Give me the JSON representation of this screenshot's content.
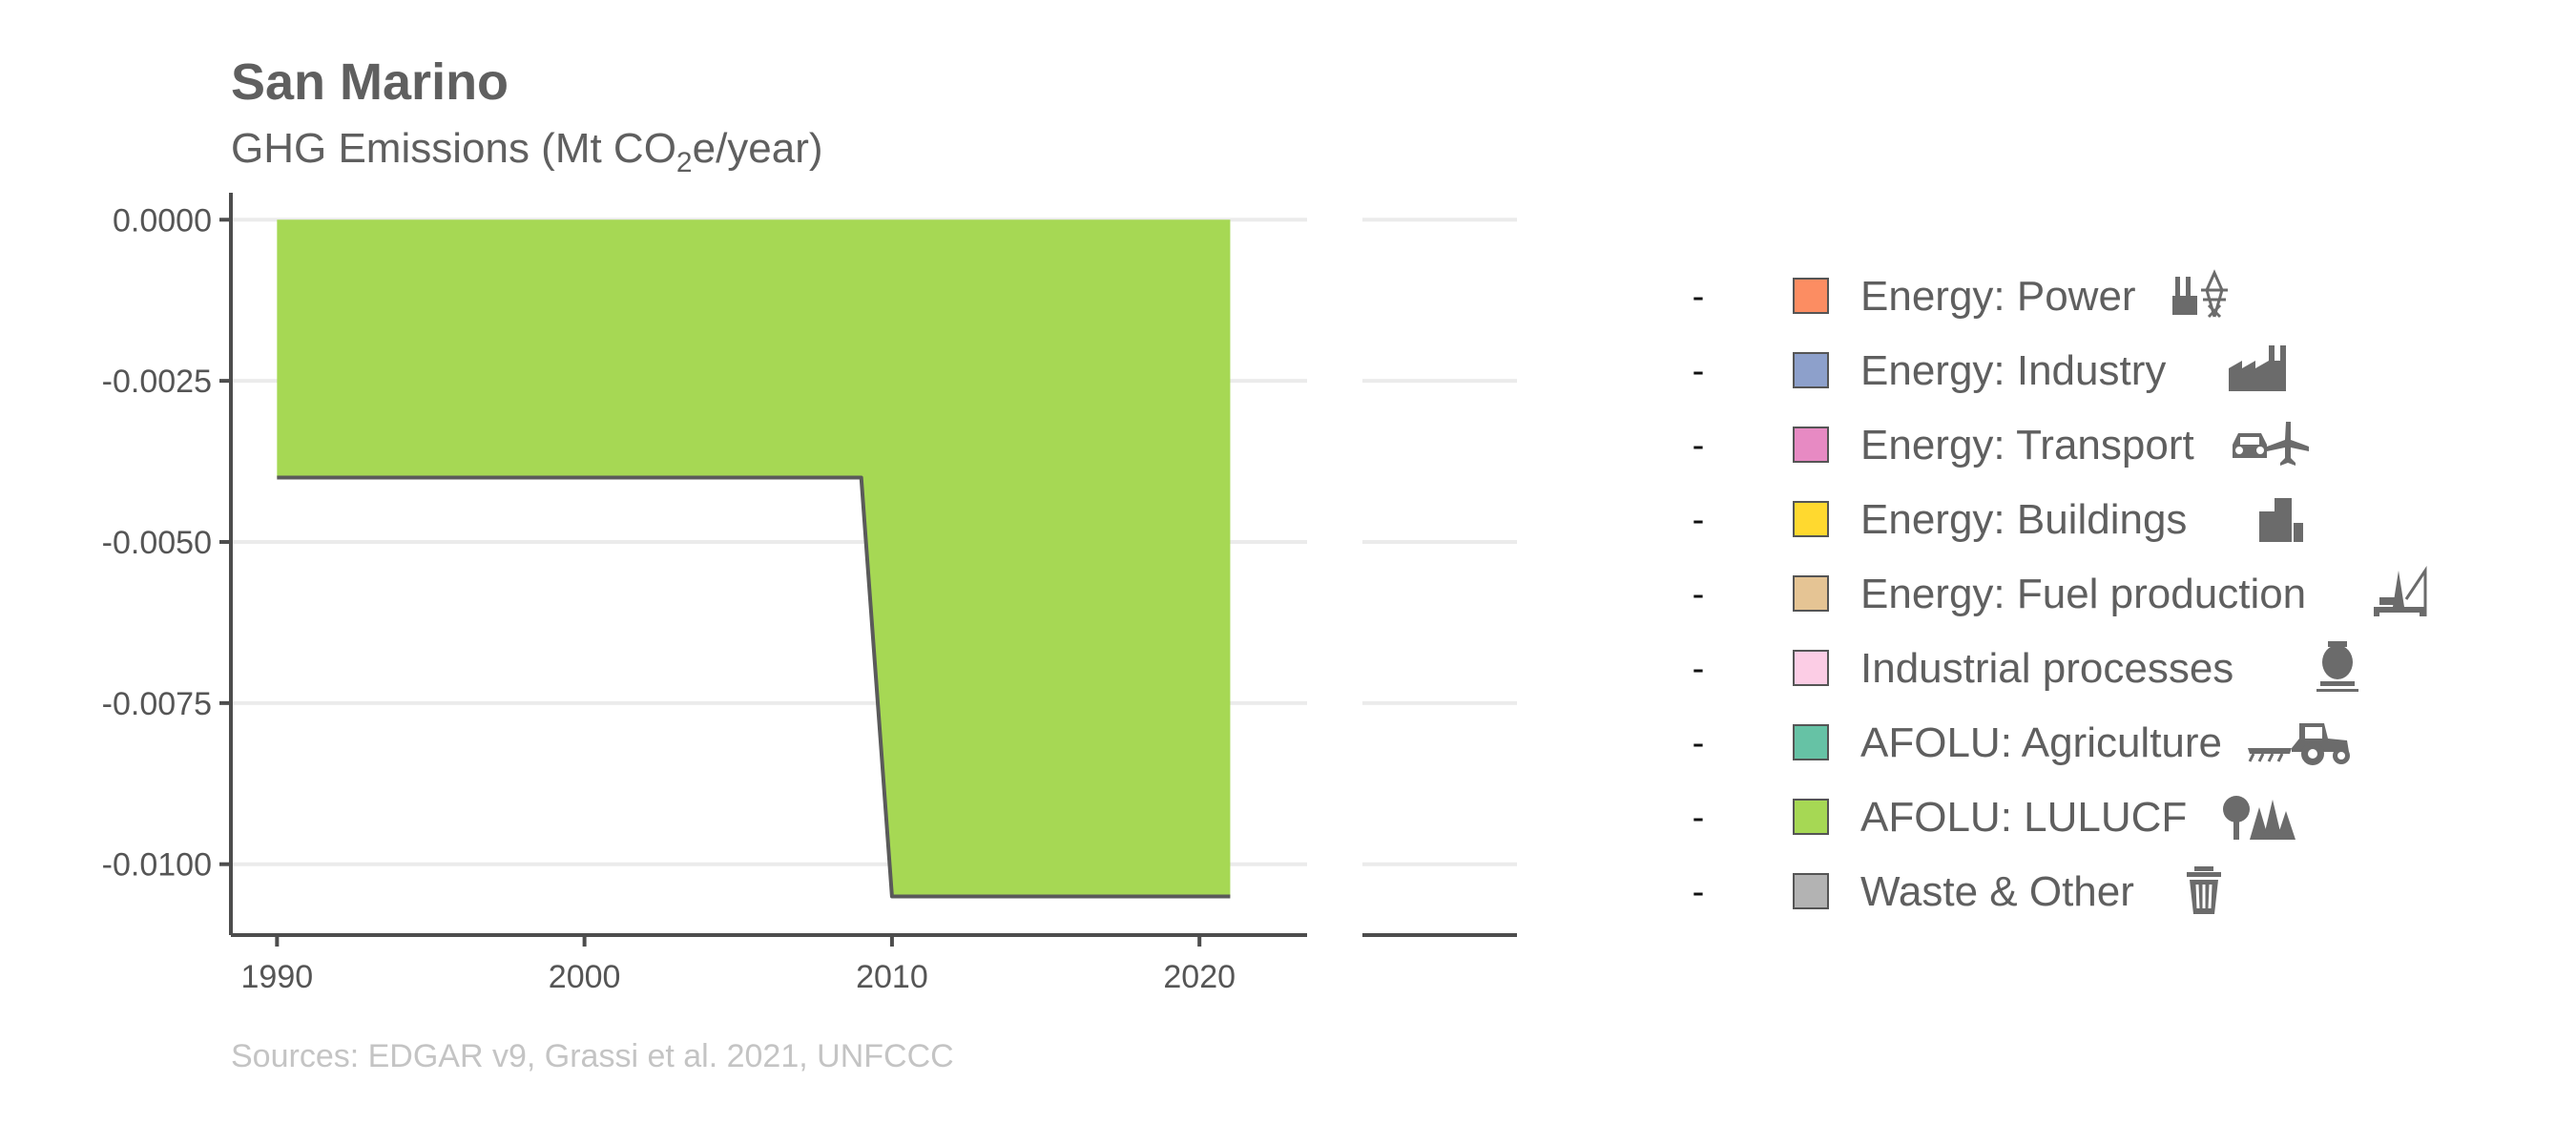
{
  "chart_data": {
    "type": "area",
    "title": "San Marino",
    "subtitle": {
      "before": "GHG Emissions (Mt CO",
      "subscript": "2",
      "after": "e/year)"
    },
    "xlabel": "",
    "ylabel": "",
    "x_ticks": [
      1990,
      2000,
      2010,
      2020
    ],
    "y_ticks": [
      0.0,
      -0.0025,
      -0.005,
      -0.0075,
      -0.01
    ],
    "y_tick_labels": [
      "0.0000",
      "-0.0025",
      "-0.0050",
      "-0.0075",
      "-0.0100"
    ],
    "xlim": [
      1988.5,
      2023.5
    ],
    "ylim": [
      -0.0111,
      0.0003
    ],
    "grid": true,
    "legend_position": "right",
    "series": [
      {
        "name": "AFOLU: LULUCF",
        "color": "#a6d854",
        "x": [
          1990,
          1991,
          1992,
          1993,
          1994,
          1995,
          1996,
          1997,
          1998,
          1999,
          2000,
          2001,
          2002,
          2003,
          2004,
          2005,
          2006,
          2007,
          2008,
          2009,
          2010,
          2011,
          2012,
          2013,
          2014,
          2015,
          2016,
          2017,
          2018,
          2019,
          2020,
          2021
        ],
        "values": [
          -0.004,
          -0.004,
          -0.004,
          -0.004,
          -0.004,
          -0.004,
          -0.004,
          -0.004,
          -0.004,
          -0.004,
          -0.004,
          -0.004,
          -0.004,
          -0.004,
          -0.004,
          -0.004,
          -0.004,
          -0.004,
          -0.004,
          -0.004,
          -0.0105,
          -0.0105,
          -0.0105,
          -0.0105,
          -0.0105,
          -0.0105,
          -0.0105,
          -0.0105,
          -0.0105,
          -0.0105,
          -0.0105,
          -0.0105
        ]
      }
    ],
    "total_line_color": "#5a5a5a",
    "legend": [
      {
        "label": "Energy: Power",
        "color": "#fc8d62",
        "icon": "power-plant-pylon-icon"
      },
      {
        "label": "Energy: Industry",
        "color": "#8da0cb",
        "icon": "factory-icon"
      },
      {
        "label": "Energy: Transport",
        "color": "#e78ac3",
        "icon": "car-plane-icon"
      },
      {
        "label": "Energy: Buildings",
        "color": "#ffd92f",
        "icon": "buildings-icon"
      },
      {
        "label": "Energy: Fuel production",
        "color": "#e5c494",
        "icon": "oil-rig-icon"
      },
      {
        "label": "Industrial processes",
        "color": "#fccde5",
        "icon": "cement-mixer-icon"
      },
      {
        "label": "AFOLU: Agriculture",
        "color": "#66c2a5",
        "icon": "tractor-plough-icon"
      },
      {
        "label": "AFOLU: LULUCF",
        "color": "#a6d854",
        "icon": "trees-icon"
      },
      {
        "label": "Waste & Other",
        "color": "#b3b3b3",
        "icon": "trash-can-icon"
      }
    ],
    "legend_marker_text": "-",
    "caption": "Sources: EDGAR v9, Grassi et al. 2021, UNFCCC"
  }
}
